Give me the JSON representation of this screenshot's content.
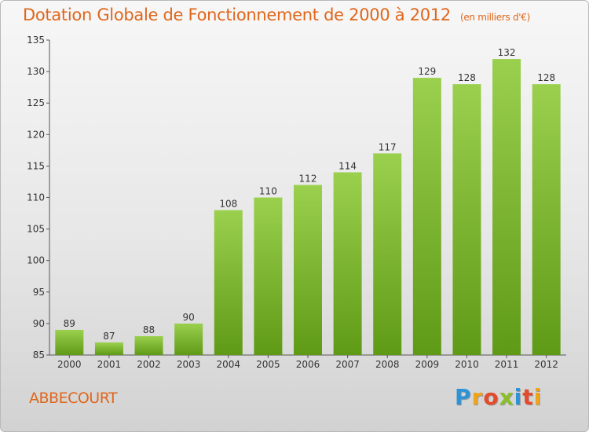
{
  "title": "Dotation Globale de Fonctionnement de 2000 à 2012",
  "subtitle": "(en milliers d'€)",
  "place": "ABBECOURT",
  "logo": {
    "letters": [
      "P",
      "r",
      "o",
      "x",
      "i",
      "t",
      "i"
    ],
    "colors": [
      "#2e93d6",
      "#f0a319",
      "#e44b2a",
      "#8bbf2a",
      "#2e93d6",
      "#e44b2a",
      "#f0a319"
    ]
  },
  "colors": {
    "accent": "#e0661b",
    "bar_top": "#9ad04e",
    "bar_bottom": "#5f9a16"
  },
  "chart_data": {
    "type": "bar",
    "categories": [
      "2000",
      "2001",
      "2002",
      "2003",
      "2004",
      "2005",
      "2006",
      "2007",
      "2008",
      "2009",
      "2010",
      "2011",
      "2012"
    ],
    "values": [
      89,
      87,
      88,
      90,
      108,
      110,
      112,
      114,
      117,
      129,
      128,
      132,
      128
    ],
    "ylim": [
      85,
      135
    ],
    "yticks": [
      85,
      90,
      95,
      100,
      105,
      110,
      115,
      120,
      125,
      130,
      135
    ],
    "grid": false,
    "data_labels": true
  }
}
